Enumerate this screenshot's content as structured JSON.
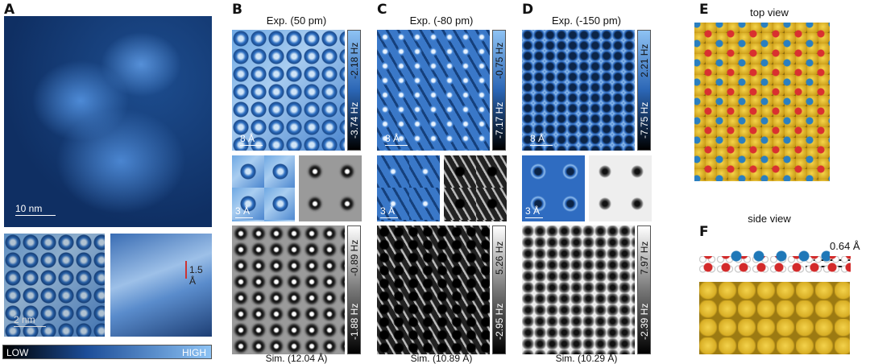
{
  "panels": {
    "A": {
      "label": "A",
      "scale_main": "10 nm",
      "scale_small": "2 nm",
      "height_annotation": "1.5 Å",
      "colorbar_low": "LOW",
      "colorbar_high": "HIGH"
    },
    "B": {
      "label": "B",
      "exp_title": "Exp.  (50 pm)",
      "exp_top": "-2.18 Hz",
      "exp_bottom": "-3.74 Hz",
      "scale_exp": "8 Å",
      "scale_zoom": "3 Å",
      "sim_top": "-0.89 Hz",
      "sim_bottom": "-1.88 Hz",
      "sim_title": "Sim.  (12.04 Å)"
    },
    "C": {
      "label": "C",
      "exp_title": "Exp. (-80 pm)",
      "exp_top": "-0.75 Hz",
      "exp_bottom": "-7.17 Hz",
      "scale_exp": "8 Å",
      "scale_zoom": "3 Å",
      "sim_top": "5.26 Hz",
      "sim_bottom": "-2.95 Hz",
      "sim_title": "Sim.  (10.89 Å)"
    },
    "D": {
      "label": "D",
      "exp_title": "Exp. (-150 pm)",
      "exp_top": "2.21 Hz",
      "exp_bottom": "-7.75 Hz",
      "scale_exp": "8 Å",
      "scale_zoom": "3 Å",
      "sim_top": "7.97 Hz",
      "sim_bottom": "-2.39 Hz",
      "sim_title": "Sim.  (10.29 Å)"
    },
    "E": {
      "label": "E",
      "title": "top view"
    },
    "F": {
      "label": "F",
      "title": "side view",
      "height": "0.64 Å"
    }
  },
  "colors": {
    "gold": "#e3b92e",
    "oxygen": "#d3262a",
    "nitrogen": "#1f78b8",
    "hydrogen": "#ffffff",
    "accent_blue": "#2b66b5"
  }
}
